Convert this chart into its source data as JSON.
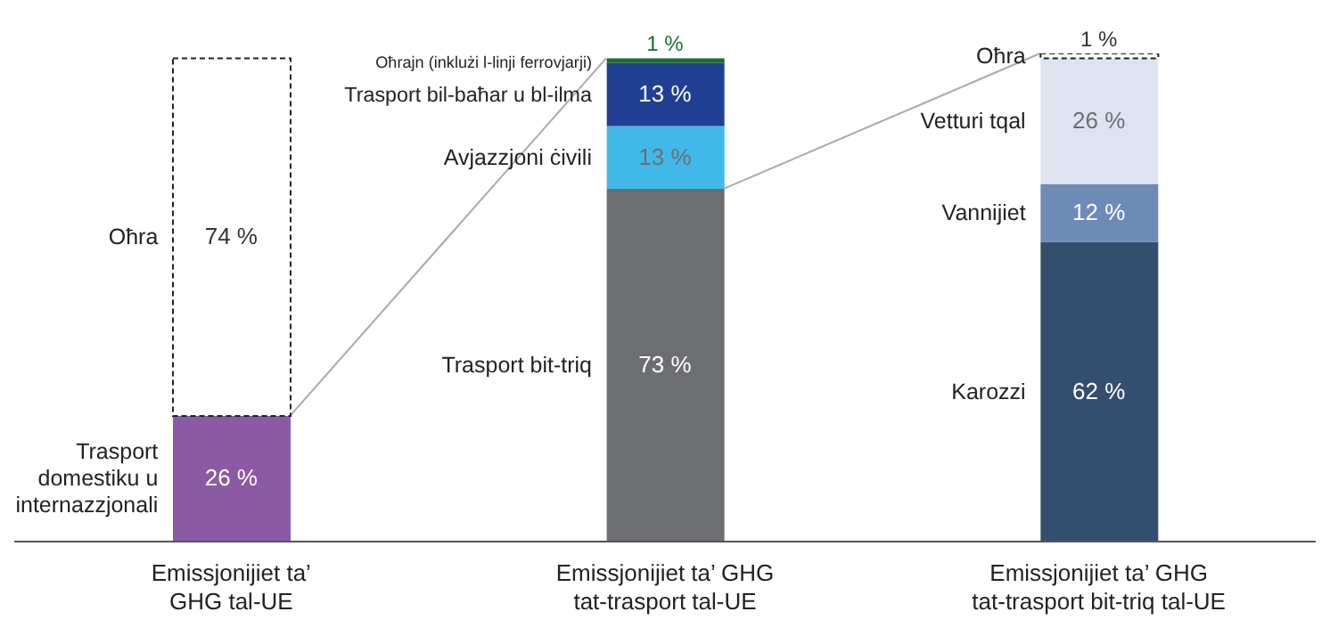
{
  "chart_data": {
    "type": "bar",
    "stacked": true,
    "legend": false,
    "categories": [
      "Emissjonijiet ta’ GHG tal-UE",
      "Emissjonijiet ta’ GHG tat-trasport tal-UE",
      "Emissjonijiet ta’ GHG tat-trasport bit-triq tal-UE"
    ],
    "series": [
      {
        "name": "Trasport domestiku u internazzjonali",
        "color": "#8b5aa5",
        "values": [
          26,
          null,
          null
        ],
        "value_labels": [
          "26 %",
          null,
          null
        ]
      },
      {
        "name": "Oħra",
        "color": "#ffffff",
        "values": [
          74,
          null,
          null
        ],
        "value_labels": [
          "74 %",
          null,
          null
        ]
      },
      {
        "name": "Trasport bit-triq",
        "color": "#6d6e72",
        "values": [
          null,
          73,
          null
        ],
        "value_labels": [
          null,
          "73 %",
          null
        ]
      },
      {
        "name": "Avjazzjoni ċivili",
        "color": "#41b9e8",
        "values": [
          null,
          13,
          null
        ],
        "value_labels": [
          null,
          "13 %",
          null
        ]
      },
      {
        "name": "Trasport bil-baħar u bl-ilma",
        "color": "#213f93",
        "values": [
          null,
          13,
          null
        ],
        "value_labels": [
          null,
          "13 %",
          null
        ]
      },
      {
        "name": "Oħrajn (inklużi l-linji ferrovjarji)",
        "color": "#1b6b3c",
        "values": [
          null,
          1,
          null
        ],
        "value_labels": [
          null,
          "1 %",
          null
        ]
      },
      {
        "name": "Karozzi",
        "color": "#344e6e",
        "values": [
          null,
          null,
          62
        ],
        "value_labels": [
          null,
          null,
          "62 %"
        ]
      },
      {
        "name": "Vannijiet",
        "color": "#6e8bb7",
        "values": [
          null,
          null,
          12
        ],
        "value_labels": [
          null,
          null,
          "12 %"
        ]
      },
      {
        "name": "Vetturi tqal",
        "color": "#dde4ef",
        "values": [
          null,
          null,
          26
        ],
        "value_labels": [
          null,
          null,
          "26 %"
        ]
      },
      {
        "name": "Oħra",
        "color": "#ffffff",
        "values": [
          null,
          null,
          1
        ],
        "value_labels": [
          null,
          null,
          "1 %"
        ]
      }
    ]
  }
}
